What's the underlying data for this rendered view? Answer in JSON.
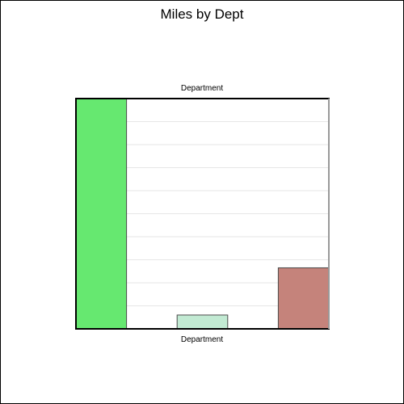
{
  "chart_data": {
    "type": "bar",
    "title": "Miles by Dept",
    "xlabel_top": "Department",
    "xlabel_bottom": "Department",
    "ylabel": "",
    "categories": [
      "",
      "",
      "",
      "",
      ""
    ],
    "values": [
      10,
      0,
      0.6,
      0,
      2.65
    ],
    "colors": [
      "#66e870",
      "#bfbfbf",
      "#c2ead3",
      "#bfbfbf",
      "#c5837b"
    ],
    "ylim": [
      0,
      10
    ],
    "grid": true,
    "legend": "none"
  }
}
